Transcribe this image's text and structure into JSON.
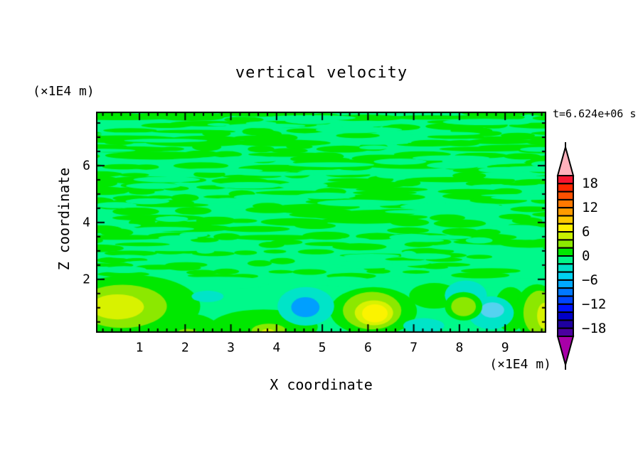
{
  "page": {
    "background": "#FFFFFF"
  },
  "header": {
    "title": "vertical velocity",
    "timestamp": "t=6.624e+06 s"
  },
  "x_axis": {
    "label": "X coordinate",
    "unit": "(×1E4 m)",
    "tick_values": [
      1,
      2,
      3,
      4,
      5,
      6,
      7,
      8,
      9
    ],
    "minor_step": 0.2
  },
  "z_axis": {
    "label": "Z coordinate",
    "unit": "(×1E4 m)",
    "tick_values": [
      6,
      4,
      2
    ],
    "minor_step": 0.5,
    "major_step": 2
  },
  "colorbar": {
    "label_values": [
      18,
      12,
      6,
      0,
      -6,
      -12,
      -18
    ],
    "label_every_n_bands": 3,
    "top_value": 20,
    "bottom_value": -20,
    "band_value_step": 2,
    "over_color": "#FFB0BC",
    "under_color": "#A800A8",
    "band_colors_top_to_bottom": [
      "#F81430",
      "#FF2800",
      "#FF5000",
      "#FF7800",
      "#FF9B00",
      "#FFC800",
      "#FFF000",
      "#C8F000",
      "#8CE800",
      "#00E800",
      "#00F788",
      "#00E0C8",
      "#00D2F0",
      "#00A8FF",
      "#0078FF",
      "#0046FF",
      "#0014FF",
      "#0000C8",
      "#1E00A0",
      "#4B00A0"
    ]
  },
  "chart_data": {
    "type": "heatmap",
    "subtype": "filled-contour",
    "title": "vertical velocity",
    "xlabel": "X coordinate (×1E4 m)",
    "ylabel": "Z coordinate (×1E4 m)",
    "xlim": [
      0.05,
      9.9
    ],
    "zlim": [
      0.12,
      7.9
    ],
    "time_annotation": "t=6.624e+06 s",
    "contour_levels": [
      -20,
      -18,
      -16,
      -14,
      -12,
      -10,
      -8,
      -6,
      -4,
      -2,
      0,
      2,
      4,
      6,
      8,
      10,
      12,
      14,
      16,
      18,
      20
    ],
    "field_summary": "Near-zero vertical velocity everywhere above z≈2 (fine horizontal streaks alternating between 0..+2 and -2..0 bands); below z≈2 smooth cells: updrafts to ~+6 near x≈0.8, x≈3.8, x≈6.1, x≈8.1, x≈9.8 and downdrafts to ~-8 near x≈4.6, weaker (-2..-4) near x≈2.5, x≈7.2, x≈8.1-8.7",
    "palette": {
      "g": "#00E800",
      "sp": "#00F98A",
      "ch": "#8CE800",
      "py": "#D8F200",
      "y": "#FBF300",
      "c": "#00E4C8",
      "lb": "#55D2F0",
      "b": "#009FFF"
    },
    "streaks": {
      "seed": 987654321,
      "z_bottom": 2.05,
      "green_coverage": 0.58,
      "fragment_passes": 80
    },
    "blobs": [
      {
        "x": 0.83,
        "z": 1.05,
        "rx": 1.5,
        "ry": 1.1,
        "c": "g"
      },
      {
        "x": 2.0,
        "z": 0.3,
        "rx": 0.72,
        "ry": 0.5,
        "c": "g"
      },
      {
        "x": 3.72,
        "z": 0.32,
        "rx": 1.18,
        "ry": 0.62,
        "c": "g"
      },
      {
        "x": 7.45,
        "z": 1.42,
        "rx": 0.55,
        "ry": 0.45,
        "c": "g"
      },
      {
        "x": 9.12,
        "z": 0.95,
        "rx": 0.36,
        "ry": 0.78,
        "c": "g"
      },
      {
        "x": 6.12,
        "z": 0.88,
        "rx": 0.95,
        "ry": 0.85,
        "c": "g"
      },
      {
        "x": 9.7,
        "z": 0.85,
        "rx": 0.48,
        "ry": 0.98,
        "c": "g"
      },
      {
        "x": 2.49,
        "z": 1.4,
        "rx": 0.35,
        "ry": 0.2,
        "c": "c"
      },
      {
        "x": 7.22,
        "z": 0.37,
        "rx": 0.45,
        "ry": 0.26,
        "c": "c"
      },
      {
        "x": 4.64,
        "z": 1.05,
        "rx": 0.62,
        "ry": 0.68,
        "c": "c"
      },
      {
        "x": 8.14,
        "z": 1.44,
        "rx": 0.46,
        "ry": 0.52,
        "c": "c"
      },
      {
        "x": 8.69,
        "z": 0.82,
        "rx": 0.5,
        "ry": 0.58,
        "c": "c"
      },
      {
        "x": 8.72,
        "z": 0.92,
        "rx": 0.26,
        "ry": 0.27,
        "c": "lb"
      },
      {
        "x": 4.63,
        "z": 1.02,
        "rx": 0.31,
        "ry": 0.35,
        "c": "b"
      },
      {
        "x": 8.09,
        "z": 1.05,
        "rx": 0.41,
        "ry": 0.5,
        "c": "g"
      },
      {
        "x": 0.63,
        "z": 1.05,
        "rx": 0.97,
        "ry": 0.76,
        "c": "ch"
      },
      {
        "x": 0.52,
        "z": 1.03,
        "rx": 0.58,
        "ry": 0.44,
        "c": "py"
      },
      {
        "x": 2.05,
        "z": 0.1,
        "rx": 0.23,
        "ry": 0.16,
        "c": "ch"
      },
      {
        "x": 3.83,
        "z": 0.18,
        "rx": 0.38,
        "ry": 0.26,
        "c": "ch"
      },
      {
        "x": 3.81,
        "z": 0.14,
        "rx": 0.15,
        "ry": 0.11,
        "c": "py"
      },
      {
        "x": 6.09,
        "z": 0.9,
        "rx": 0.64,
        "ry": 0.66,
        "c": "ch"
      },
      {
        "x": 6.13,
        "z": 0.82,
        "rx": 0.42,
        "ry": 0.44,
        "c": "py"
      },
      {
        "x": 6.15,
        "z": 0.8,
        "rx": 0.28,
        "ry": 0.32,
        "c": "y"
      },
      {
        "x": 8.09,
        "z": 1.04,
        "rx": 0.27,
        "ry": 0.34,
        "c": "ch"
      },
      {
        "x": 9.75,
        "z": 0.82,
        "rx": 0.35,
        "ry": 0.78,
        "c": "ch"
      },
      {
        "x": 9.86,
        "z": 0.72,
        "rx": 0.16,
        "ry": 0.45,
        "c": "py"
      }
    ]
  }
}
